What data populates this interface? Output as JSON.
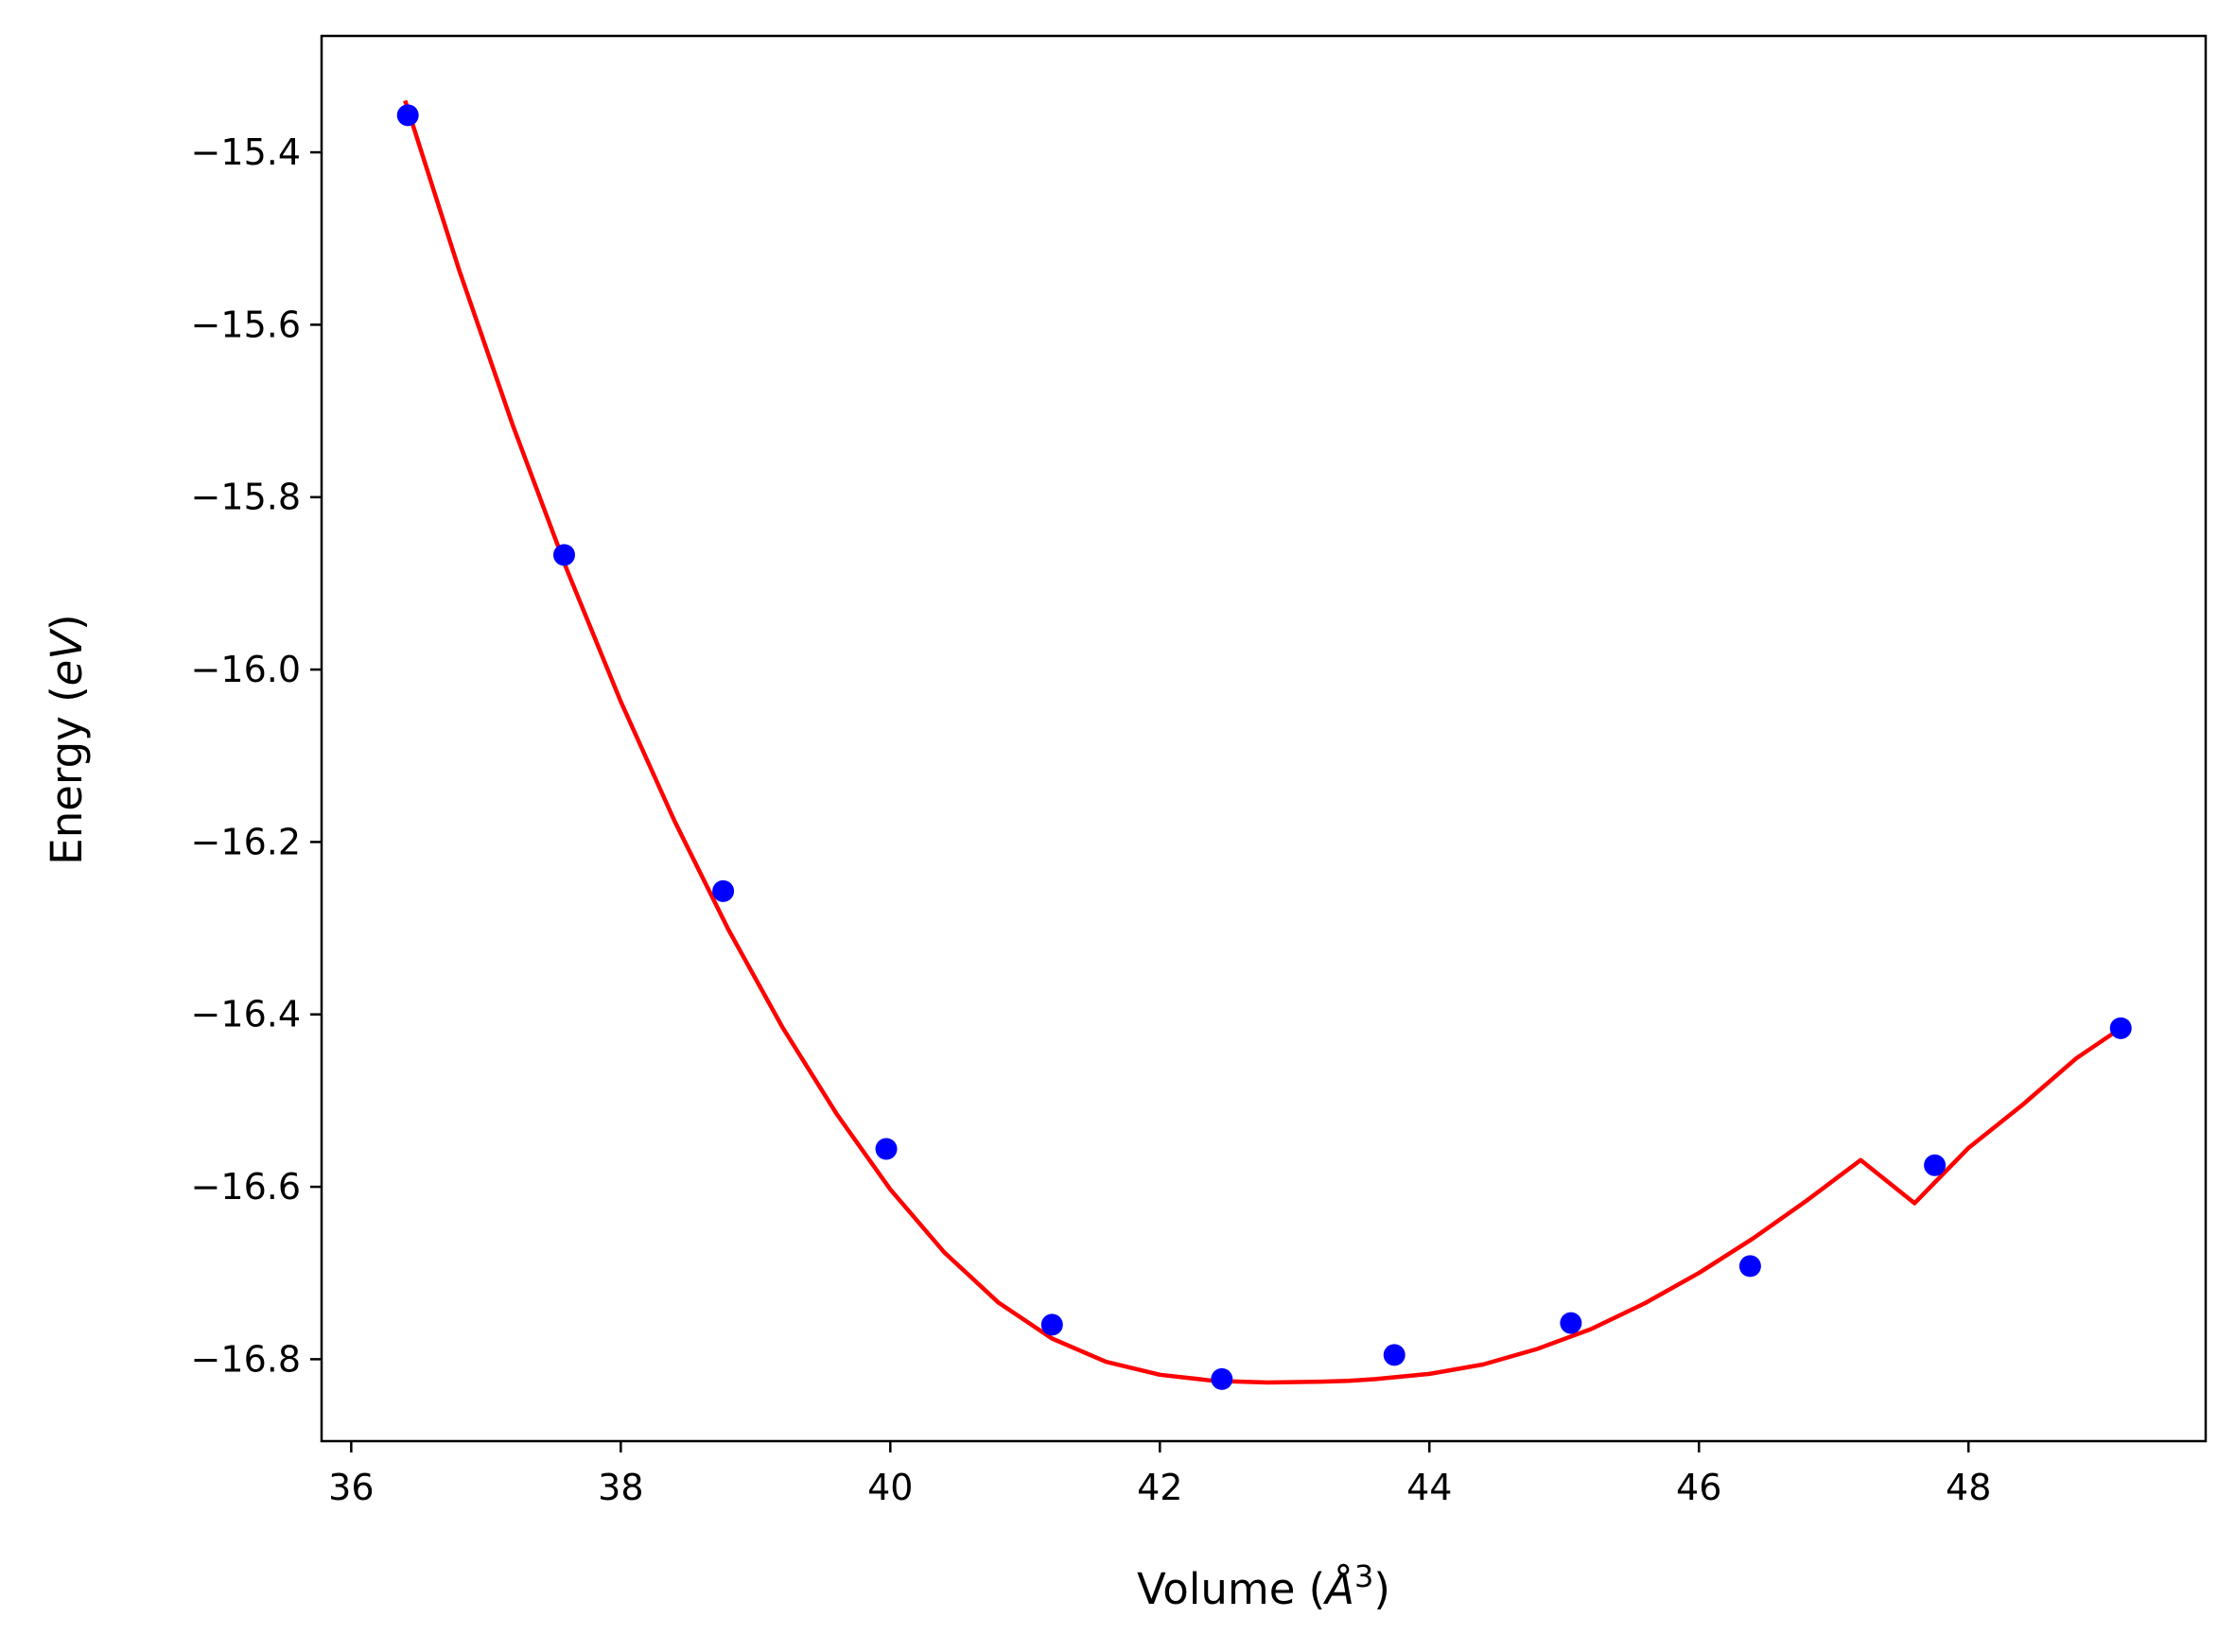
{
  "chart_data": {
    "type": "scatter",
    "xlabel": "Volume (Å³)",
    "ylabel": "Energy (eV)",
    "xlabel_parts": {
      "prefix": "Volume (",
      "unit": "Å",
      "sup": "3",
      "suffix": ")"
    },
    "ylabel_parts": {
      "prefix": "Energy (",
      "unit": "eV",
      "suffix": ")"
    },
    "xlim": [
      35.78,
      49.76
    ],
    "ylim": [
      -16.895,
      -15.265
    ],
    "x_ticks": [
      36,
      38,
      40,
      42,
      44,
      46,
      48
    ],
    "x_tick_labels": [
      "36",
      "38",
      "40",
      "42",
      "44",
      "46",
      "48"
    ],
    "y_ticks": [
      -15.4,
      -15.6,
      -15.8,
      -16.0,
      -16.2,
      -16.4,
      -16.6,
      -16.8
    ],
    "y_tick_labels": [
      "−15.4",
      "−15.6",
      "−15.8",
      "−16.0",
      "−16.2",
      "−16.4",
      "−16.6",
      "−16.8"
    ],
    "grid": false,
    "series": [
      {
        "kind": "points",
        "color": "#0000ff",
        "x": [
          36.42,
          37.58,
          38.76,
          39.97,
          41.2,
          42.46,
          43.74,
          45.05,
          46.38,
          47.75,
          49.13
        ],
        "y": [
          -15.357,
          -15.867,
          -16.257,
          -16.556,
          -16.76,
          -16.823,
          -16.795,
          -16.758,
          -16.692,
          -16.575,
          -16.416
        ]
      },
      {
        "kind": "fit-curve",
        "color": "#ff0000",
        "x": [
          36.4,
          36.8,
          37.2,
          37.6,
          38.0,
          38.4,
          38.8,
          39.2,
          39.6,
          40.0,
          40.4,
          40.8,
          41.2,
          41.6,
          42.0,
          42.4,
          42.8,
          43.2,
          43.4,
          43.6,
          44.0,
          44.4,
          44.8,
          45.2,
          45.6,
          46.0,
          46.4,
          46.8,
          47.2,
          47.6,
          48.0,
          48.4,
          48.8,
          49.13
        ],
        "y": [
          -15.34,
          -15.536,
          -15.717,
          -15.884,
          -16.037,
          -16.176,
          -16.302,
          -16.415,
          -16.515,
          -16.603,
          -16.676,
          -16.734,
          -16.776,
          -16.803,
          -16.818,
          -16.825,
          -16.827,
          -16.826,
          -16.825,
          -16.823,
          -16.817,
          -16.806,
          -16.788,
          -16.765,
          -16.735,
          -16.7,
          -16.66,
          -16.616,
          -16.569,
          -16.619,
          -16.555,
          -16.505,
          -16.451,
          -16.416
        ]
      }
    ]
  }
}
